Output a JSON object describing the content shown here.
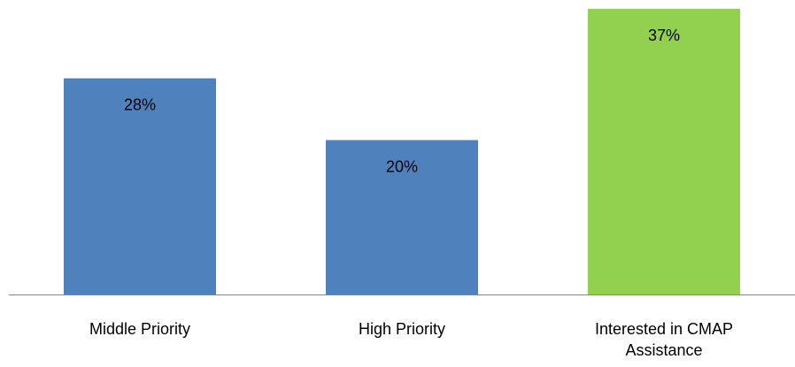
{
  "chart_data": {
    "type": "bar",
    "categories": [
      "Middle Priority",
      "High Priority",
      "Interested in CMAP Assistance"
    ],
    "values": [
      28,
      20,
      37
    ],
    "data_labels": [
      "28%",
      "20%",
      "37%"
    ],
    "value_unit": "%",
    "ylim": [
      0,
      37
    ],
    "grid": false,
    "legend": "none",
    "title": "",
    "xlabel": "",
    "ylabel": "",
    "colors": [
      "#4f81bd",
      "#4f81bd",
      "#92d050"
    ]
  },
  "colors": {
    "axis": "#868686",
    "label_text": "#000000"
  }
}
